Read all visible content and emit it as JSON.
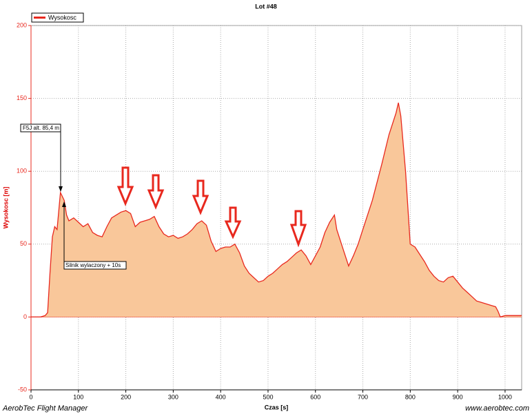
{
  "chart_data": {
    "type": "area",
    "title": "Lot #48",
    "x_label": "Czas [s]",
    "y_label": "Wysokosc [m]",
    "x": [
      0,
      20,
      30,
      35,
      40,
      45,
      50,
      55,
      62,
      70,
      75,
      80,
      90,
      100,
      110,
      120,
      130,
      140,
      150,
      160,
      170,
      180,
      190,
      200,
      210,
      220,
      230,
      240,
      250,
      260,
      270,
      280,
      290,
      300,
      310,
      320,
      330,
      340,
      350,
      360,
      370,
      380,
      390,
      400,
      410,
      420,
      430,
      440,
      450,
      460,
      470,
      480,
      490,
      500,
      510,
      520,
      530,
      540,
      550,
      560,
      570,
      580,
      590,
      600,
      610,
      620,
      630,
      640,
      645,
      660,
      670,
      680,
      690,
      700,
      720,
      740,
      755,
      770,
      775,
      780,
      790,
      800,
      810,
      820,
      830,
      840,
      850,
      860,
      870,
      880,
      890,
      900,
      910,
      920,
      930,
      940,
      950,
      960,
      970,
      980,
      985,
      990,
      1000,
      1010,
      1020,
      1035
    ],
    "series": [
      {
        "name": "Wysokosc",
        "color": "#e8281e",
        "fill": "#f9c79a",
        "values": [
          0,
          0,
          1,
          3,
          30,
          55,
          62,
          60,
          85.4,
          80,
          70,
          66,
          68,
          65,
          62,
          64,
          58,
          56,
          55,
          62,
          68,
          70,
          72,
          73,
          71,
          62,
          65,
          66,
          67,
          69,
          62,
          57,
          55,
          56,
          54,
          55,
          57,
          60,
          64,
          66,
          63,
          52,
          45,
          47,
          48,
          48,
          50,
          44,
          35,
          30,
          27,
          24,
          25,
          28,
          30,
          33,
          36,
          38,
          41,
          44,
          46,
          42,
          36,
          42,
          48,
          58,
          65,
          70,
          60,
          45,
          35,
          42,
          50,
          60,
          80,
          105,
          125,
          140,
          147,
          138,
          100,
          50,
          48,
          43,
          38,
          32,
          28,
          25,
          24,
          27,
          28,
          24,
          20,
          17,
          14,
          11,
          10,
          9,
          8,
          7,
          4,
          0,
          1,
          1,
          1,
          1
        ]
      }
    ],
    "xlim": [
      0,
      1035
    ],
    "ylim": [
      -50,
      200
    ],
    "xticks": [
      0,
      100,
      200,
      300,
      400,
      500,
      600,
      700,
      800,
      900,
      1000
    ],
    "yticks": [
      -50,
      0,
      50,
      100,
      150,
      200
    ],
    "grid": true,
    "legend": "top-left",
    "annotations": [
      "F5J alt. 85,4 m",
      "Silnik wylaczony + 10s"
    ]
  },
  "footer": {
    "left": "AerobTec Flight Manager",
    "right": "www.aerobtec.com"
  }
}
